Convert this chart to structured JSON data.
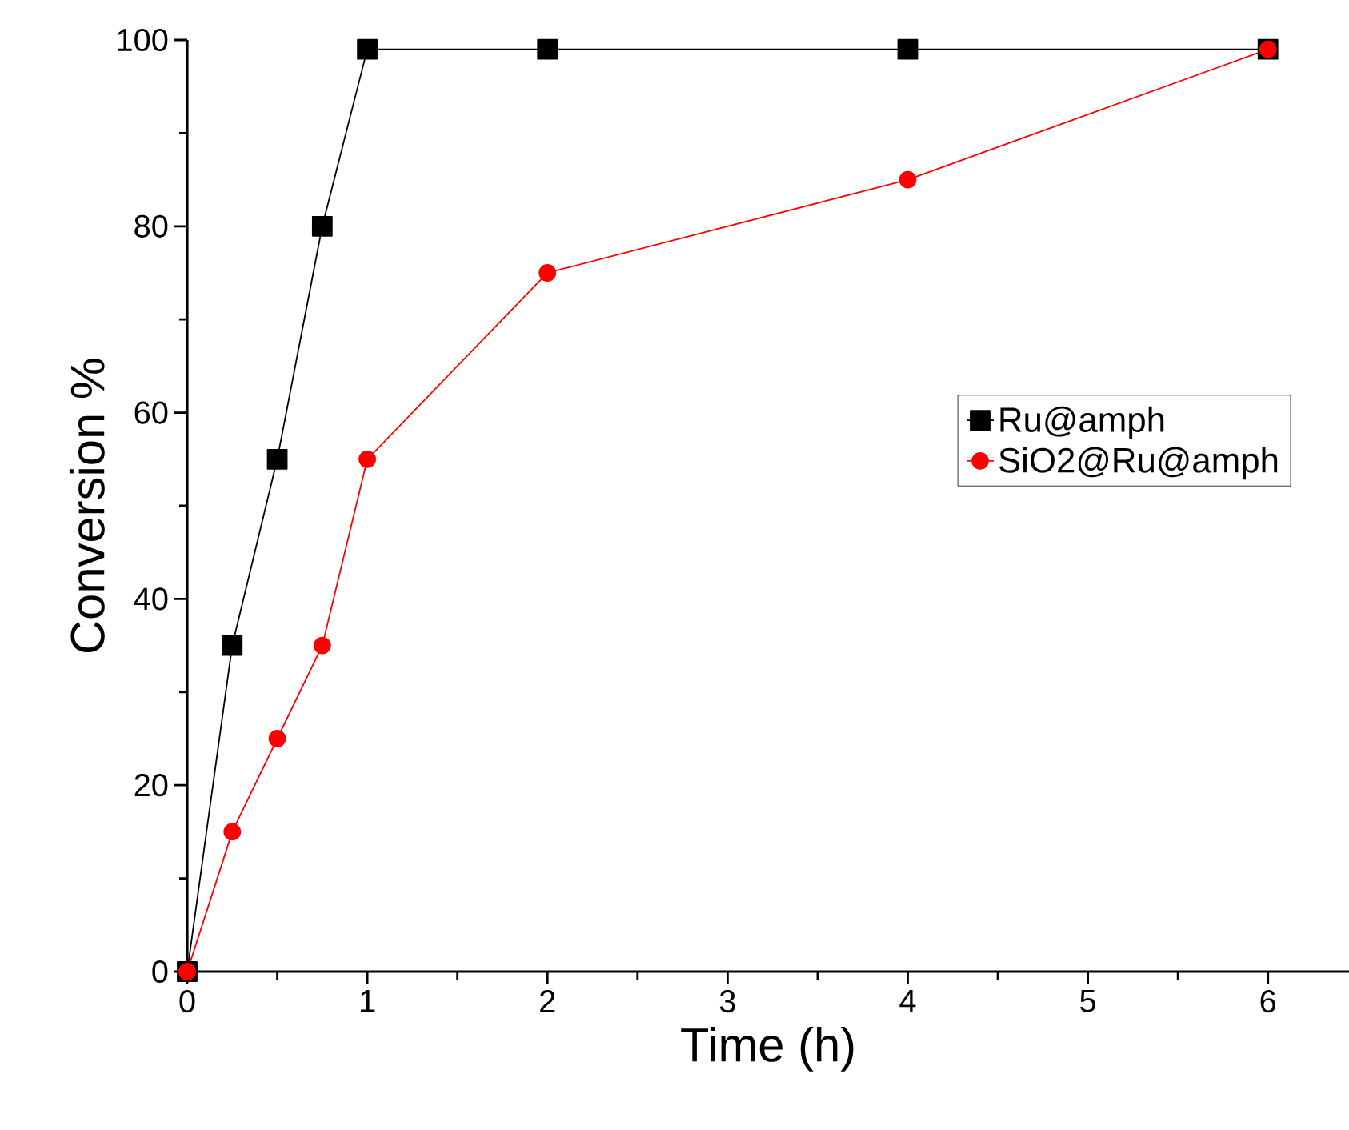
{
  "chart_data": {
    "type": "line",
    "xlabel": "Time (h)",
    "ylabel": "Conversion %",
    "x": [
      0,
      0.25,
      0.5,
      0.75,
      1,
      2,
      4,
      6
    ],
    "series": [
      {
        "name": "Ru@amph",
        "color": "#000000",
        "marker": "square",
        "values": [
          0,
          35,
          55,
          80,
          99,
          99,
          99,
          99
        ]
      },
      {
        "name": "SiO2@Ru@amph",
        "color": "#ff0000",
        "marker": "circle",
        "values": [
          0,
          15,
          25,
          35,
          55,
          75,
          85,
          99
        ]
      }
    ],
    "xlim": [
      0,
      6.45
    ],
    "ylim": [
      0,
      100
    ],
    "xticks": [
      0,
      1,
      2,
      3,
      4,
      5,
      6
    ],
    "yticks": [
      0,
      20,
      40,
      60,
      80,
      100
    ],
    "grid": false,
    "legend": "right",
    "line_style": "solid"
  }
}
